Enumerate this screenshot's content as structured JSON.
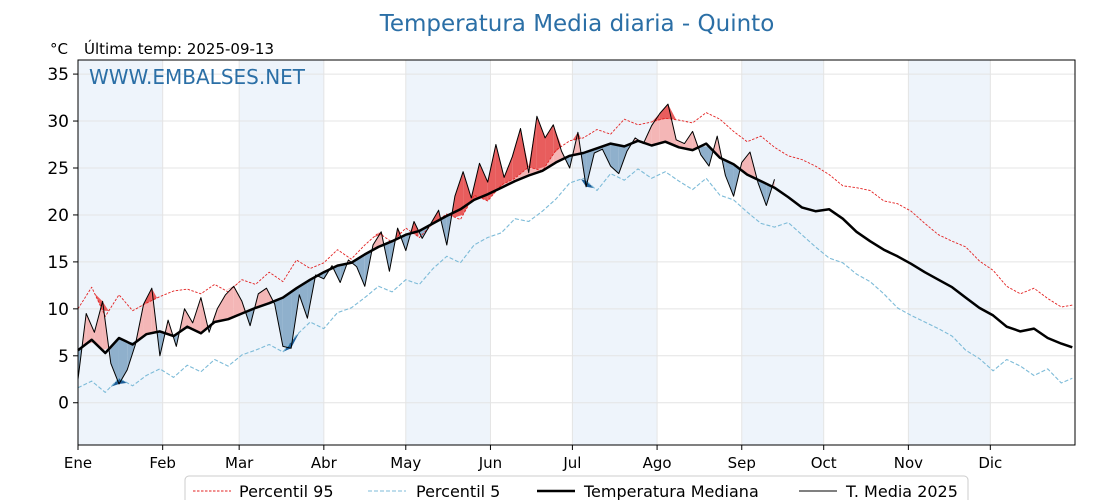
{
  "chart_data": {
    "type": "line",
    "title": "Temperatura Media diaria - Quinto",
    "unit_label": "°C",
    "last_temp_label": "Última temp: 2025-09-13",
    "watermark": "WWW.EMBALSES.NET",
    "ylim": [
      -4.5,
      36.5
    ],
    "yticks": [
      "0",
      "5",
      "10",
      "15",
      "20",
      "25",
      "30",
      "35"
    ],
    "months": [
      "Ene",
      "Feb",
      "Mar",
      "Abr",
      "May",
      "Jun",
      "Jul",
      "Ago",
      "Sep",
      "Oct",
      "Nov",
      "Dic"
    ],
    "grid": true,
    "legend_position": "bottom",
    "x_unit": "day of year",
    "colors": {
      "title": "#2b6fa6",
      "p95": "#e32222",
      "p5": "#7dbbd8",
      "median": "#000000",
      "current": "#000000",
      "above_fill": "#f4b6b6",
      "above_fill_strong": "#e85d5d",
      "below_fill": "#8fb0cc",
      "below_fill_strong": "#1f5f99",
      "shade_band": "#eef4fb"
    },
    "series": [
      {
        "name": "Percentil 95",
        "key": "p95",
        "x": [
          1,
          6,
          11,
          16,
          21,
          26,
          31,
          36,
          41,
          46,
          51,
          56,
          61,
          66,
          71,
          76,
          81,
          86,
          91,
          96,
          101,
          106,
          111,
          116,
          121,
          126,
          131,
          136,
          141,
          146,
          151,
          156,
          161,
          166,
          171,
          176,
          181,
          186,
          191,
          196,
          201,
          206,
          211,
          216,
          221,
          226,
          231,
          236,
          241,
          246,
          251,
          256,
          261,
          266,
          271,
          276,
          281,
          286,
          291,
          296,
          301,
          306,
          311,
          316,
          321,
          326,
          331,
          336,
          341,
          346,
          351,
          356,
          361,
          365
        ],
        "y": [
          10.0,
          12.3,
          9.2,
          11.5,
          9.8,
          10.6,
          11.3,
          11.9,
          12.1,
          11.6,
          12.6,
          11.8,
          13.1,
          12.6,
          13.9,
          12.9,
          15.2,
          14.3,
          14.9,
          16.3,
          15.3,
          16.8,
          18.1,
          17.1,
          18.6,
          17.6,
          19.1,
          20.1,
          19.5,
          22.1,
          21.5,
          23.2,
          23.9,
          25.1,
          24.7,
          26.9,
          27.9,
          28.2,
          29.1,
          28.6,
          30.2,
          29.6,
          29.9,
          30.3,
          30.1,
          29.8,
          30.9,
          30.2,
          28.9,
          27.8,
          28.4,
          27.2,
          26.3,
          25.9,
          25.2,
          24.3,
          23.1,
          22.9,
          22.6,
          21.5,
          21.2,
          20.4,
          19.1,
          17.9,
          17.2,
          16.6,
          15.1,
          14.1,
          12.4,
          11.6,
          12.2,
          11.1,
          10.2,
          10.4
        ]
      },
      {
        "name": "Percentil 5",
        "key": "p5",
        "x": [
          1,
          6,
          11,
          16,
          21,
          26,
          31,
          36,
          41,
          46,
          51,
          56,
          61,
          66,
          71,
          76,
          81,
          86,
          91,
          96,
          101,
          106,
          111,
          116,
          121,
          126,
          131,
          136,
          141,
          146,
          151,
          156,
          161,
          166,
          171,
          176,
          181,
          186,
          191,
          196,
          201,
          206,
          211,
          216,
          221,
          226,
          231,
          236,
          241,
          246,
          251,
          256,
          261,
          266,
          271,
          276,
          281,
          286,
          291,
          296,
          301,
          306,
          311,
          316,
          321,
          326,
          331,
          336,
          341,
          346,
          351,
          356,
          361,
          365
        ],
        "y": [
          1.6,
          2.3,
          1.1,
          2.6,
          1.8,
          2.9,
          3.6,
          2.7,
          4.0,
          3.3,
          4.6,
          3.9,
          5.1,
          5.6,
          6.2,
          5.4,
          7.2,
          8.6,
          7.9,
          9.6,
          10.1,
          11.2,
          12.4,
          11.8,
          13.1,
          12.6,
          14.3,
          15.6,
          14.9,
          16.8,
          17.6,
          18.1,
          19.6,
          19.3,
          20.4,
          21.7,
          23.4,
          23.9,
          22.6,
          24.4,
          23.7,
          24.9,
          23.9,
          24.6,
          23.6,
          22.7,
          23.9,
          22.1,
          21.6,
          20.3,
          19.1,
          18.7,
          19.2,
          17.9,
          16.6,
          15.4,
          14.9,
          13.7,
          12.9,
          11.6,
          10.1,
          9.3,
          8.6,
          7.9,
          7.1,
          5.6,
          4.7,
          3.4,
          4.6,
          3.9,
          2.9,
          3.6,
          2.1,
          2.6
        ]
      },
      {
        "name": "Temperatura Mediana",
        "key": "median",
        "x": [
          1,
          6,
          11,
          16,
          21,
          26,
          31,
          36,
          41,
          46,
          51,
          56,
          61,
          66,
          71,
          76,
          81,
          86,
          91,
          96,
          101,
          106,
          111,
          116,
          121,
          126,
          131,
          136,
          141,
          146,
          151,
          156,
          161,
          166,
          171,
          176,
          181,
          186,
          191,
          196,
          201,
          206,
          211,
          216,
          221,
          226,
          231,
          236,
          241,
          246,
          251,
          256,
          261,
          266,
          271,
          276,
          281,
          286,
          291,
          296,
          301,
          306,
          311,
          316,
          321,
          326,
          331,
          336,
          341,
          346,
          351,
          356,
          361,
          365
        ],
        "y": [
          5.6,
          6.7,
          5.3,
          6.9,
          6.2,
          7.3,
          7.6,
          7.1,
          8.1,
          7.4,
          8.6,
          8.9,
          9.5,
          10.1,
          10.6,
          11.2,
          12.2,
          13.1,
          13.9,
          14.6,
          14.9,
          15.8,
          16.6,
          17.2,
          17.9,
          18.3,
          19.1,
          19.9,
          20.6,
          21.6,
          22.2,
          22.9,
          23.6,
          24.2,
          24.7,
          25.6,
          26.3,
          26.6,
          27.1,
          27.6,
          27.3,
          27.9,
          27.4,
          27.8,
          27.2,
          26.9,
          27.6,
          26.1,
          25.4,
          24.3,
          23.6,
          22.9,
          21.9,
          20.8,
          20.4,
          20.6,
          19.6,
          18.2,
          17.2,
          16.3,
          15.6,
          14.8,
          13.9,
          13.1,
          12.3,
          11.2,
          10.1,
          9.3,
          8.1,
          7.6,
          7.9,
          6.9,
          6.3,
          5.9
        ]
      },
      {
        "name": "T. Media 2025",
        "key": "current",
        "x": [
          1,
          4,
          7,
          10,
          13,
          16,
          19,
          22,
          25,
          28,
          31,
          34,
          37,
          40,
          43,
          46,
          49,
          52,
          55,
          58,
          61,
          64,
          67,
          70,
          73,
          76,
          79,
          82,
          85,
          88,
          91,
          94,
          97,
          100,
          103,
          106,
          109,
          112,
          115,
          118,
          121,
          124,
          127,
          130,
          133,
          136,
          139,
          142,
          145,
          148,
          151,
          154,
          157,
          160,
          163,
          166,
          169,
          172,
          175,
          178,
          181,
          184,
          187,
          190,
          193,
          196,
          199,
          202,
          205,
          208,
          211,
          214,
          217,
          220,
          223,
          226,
          229,
          232,
          235,
          238,
          241,
          244,
          247,
          250,
          253,
          256
        ],
        "y": [
          2.5,
          9.5,
          7.5,
          10.8,
          4.2,
          2.0,
          3.5,
          6.2,
          10.5,
          12.2,
          5.0,
          8.8,
          6.0,
          10.0,
          8.5,
          11.2,
          7.5,
          10.0,
          11.5,
          12.4,
          10.8,
          8.2,
          11.6,
          12.2,
          10.5,
          6.0,
          5.8,
          11.5,
          9.0,
          13.6,
          13.2,
          14.6,
          12.8,
          15.2,
          14.5,
          12.4,
          16.8,
          18.2,
          14.0,
          18.6,
          16.2,
          19.3,
          17.5,
          19.0,
          20.5,
          16.8,
          22.0,
          24.6,
          21.8,
          25.5,
          23.5,
          27.5,
          24.0,
          26.2,
          29.2,
          24.5,
          30.5,
          28.2,
          29.6,
          26.8,
          25.0,
          28.8,
          23.0,
          26.6,
          27.0,
          25.2,
          24.4,
          26.8,
          28.2,
          27.6,
          29.5,
          30.8,
          31.8,
          28.0,
          27.6,
          28.9,
          26.4,
          25.2,
          28.4,
          24.2,
          22.0,
          25.6,
          26.7,
          23.4,
          21.0,
          23.8
        ]
      }
    ]
  }
}
